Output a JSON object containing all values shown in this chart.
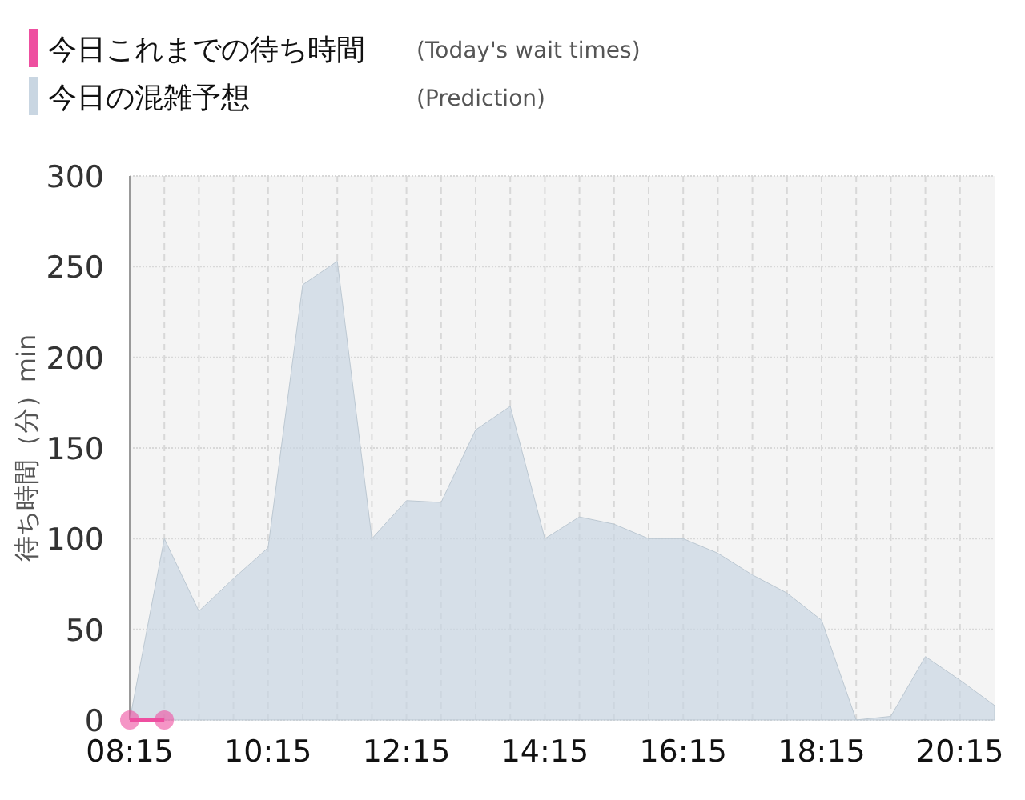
{
  "chart_data": {
    "type": "area",
    "ylabel": "待ち時間（分）min",
    "legend": "top left",
    "grid": true,
    "x": [
      8.25,
      8.75,
      9.25,
      9.75,
      10.25,
      10.75,
      11.25,
      11.75,
      12.25,
      12.75,
      13.25,
      13.75,
      14.25,
      14.75,
      15.25,
      15.75,
      16.25,
      16.75,
      17.25,
      17.75,
      18.25,
      18.75,
      19.25,
      19.75,
      20.25,
      20.75
    ],
    "series": [
      {
        "name": "今日これまでの待ち時間",
        "type": "line",
        "marker": "circle",
        "color": "#ee4fa0",
        "x": [
          8.25,
          8.75
        ],
        "values": [
          0,
          0
        ]
      },
      {
        "name": "今日の混雑予想",
        "color": "#c9d6e2",
        "values": [
          0,
          100,
          60,
          78,
          95,
          240,
          253,
          100,
          121,
          120,
          160,
          173,
          100,
          112,
          108,
          100,
          100,
          92,
          80,
          70,
          55,
          0,
          2,
          35,
          22,
          8
        ]
      }
    ],
    "annotations": [
      "(Today's wait times)",
      "(Prediction)"
    ],
    "xlim": [
      8.25,
      20.75
    ],
    "xticks": [
      {
        "value": 8.25,
        "label": "08:15"
      },
      {
        "value": 8.75,
        "label": null
      },
      {
        "value": 9.25,
        "label": null
      },
      {
        "value": 9.75,
        "label": null
      },
      {
        "value": 10.25,
        "label": "10:15"
      },
      {
        "value": 10.75,
        "label": null
      },
      {
        "value": 11.25,
        "label": null
      },
      {
        "value": 11.75,
        "label": null
      },
      {
        "value": 12.25,
        "label": "12:15"
      },
      {
        "value": 12.75,
        "label": null
      },
      {
        "value": 13.25,
        "label": null
      },
      {
        "value": 13.75,
        "label": null
      },
      {
        "value": 14.25,
        "label": "14:15"
      },
      {
        "value": 14.75,
        "label": null
      },
      {
        "value": 15.25,
        "label": null
      },
      {
        "value": 15.75,
        "label": null
      },
      {
        "value": 16.25,
        "label": "16:15"
      },
      {
        "value": 16.75,
        "label": null
      },
      {
        "value": 17.25,
        "label": null
      },
      {
        "value": 17.75,
        "label": null
      },
      {
        "value": 18.25,
        "label": "18:15"
      },
      {
        "value": 18.75,
        "label": null
      },
      {
        "value": 19.25,
        "label": null
      },
      {
        "value": 19.75,
        "label": null
      },
      {
        "value": 20.25,
        "label": "20:15"
      }
    ],
    "ylim": [
      0,
      300
    ],
    "yticks": [
      0,
      50,
      100,
      150,
      200,
      250,
      300
    ]
  }
}
